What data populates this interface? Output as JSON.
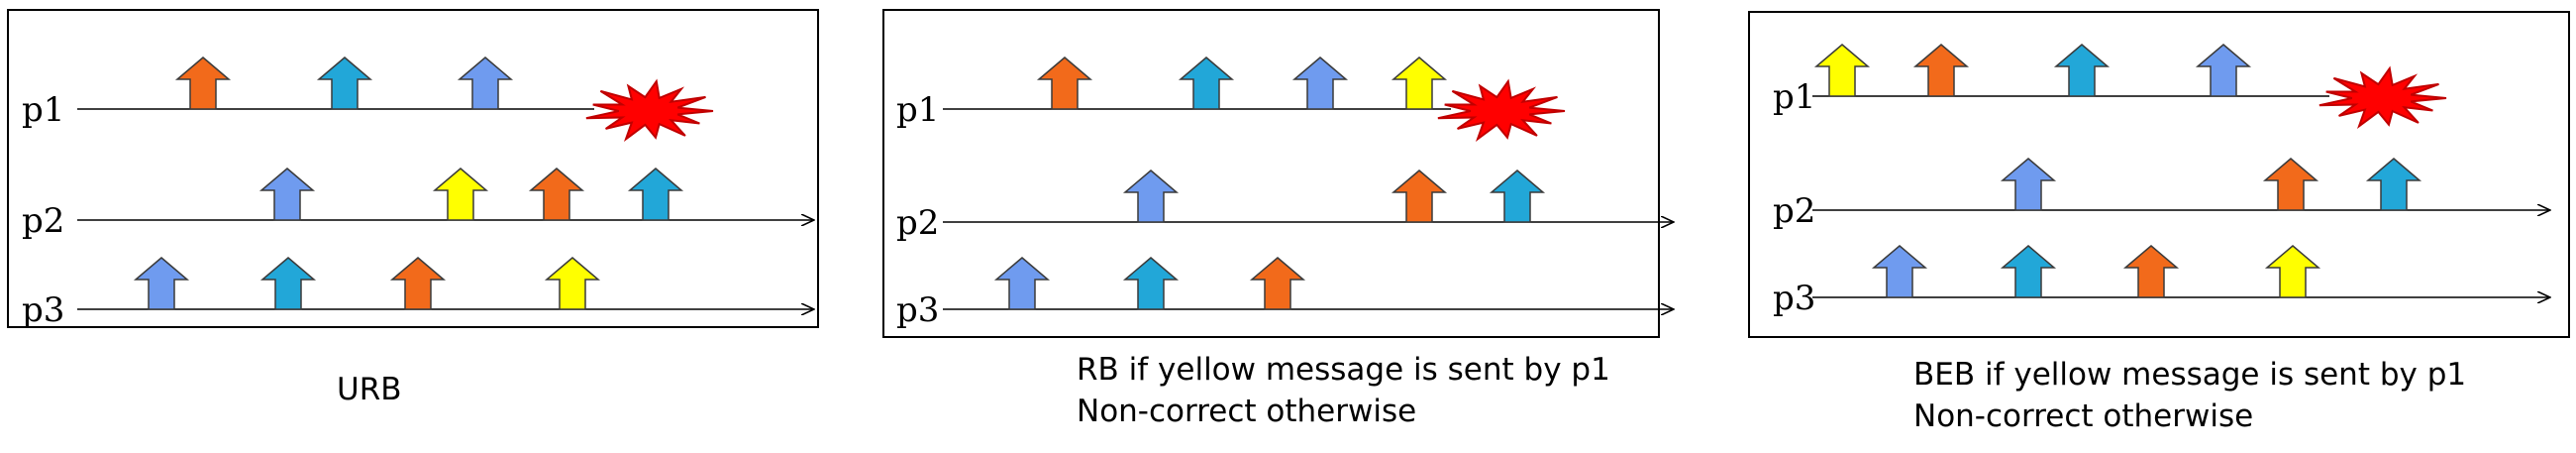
{
  "colors": {
    "orange": "#F26A1B",
    "cyan": "#22A7D8",
    "blue": "#6F9BEF",
    "yellow": "#FFFF00",
    "crash_fill": "#FF0000",
    "crash_stroke": "#C00000"
  },
  "panels": [
    {
      "process_labels": [
        "p1",
        "p2",
        "p3"
      ],
      "caption_lines": [
        "URB"
      ],
      "deliveries": {
        "p1": [
          "orange",
          "cyan",
          "blue"
        ],
        "p2": [
          "blue",
          "yellow",
          "orange",
          "cyan"
        ],
        "p3": [
          "blue",
          "cyan",
          "orange",
          "yellow"
        ]
      },
      "crashed": "p1"
    },
    {
      "process_labels": [
        "p1",
        "p2",
        "p3"
      ],
      "caption_lines": [
        "RB if yellow message is sent by p1",
        "Non-correct otherwise"
      ],
      "deliveries": {
        "p1": [
          "orange",
          "cyan",
          "blue",
          "yellow"
        ],
        "p2": [
          "blue",
          "orange",
          "cyan"
        ],
        "p3": [
          "blue",
          "cyan",
          "orange"
        ]
      },
      "crashed": "p1"
    },
    {
      "process_labels": [
        "p1",
        "p2",
        "p3"
      ],
      "caption_lines": [
        "BEB if yellow message is sent by p1",
        "Non-correct otherwise"
      ],
      "deliveries": {
        "p1": [
          "yellow",
          "orange",
          "cyan",
          "blue"
        ],
        "p2": [
          "blue",
          "orange",
          "cyan"
        ],
        "p3": [
          "blue",
          "cyan",
          "orange",
          "yellow"
        ]
      },
      "crashed": "p1"
    }
  ]
}
